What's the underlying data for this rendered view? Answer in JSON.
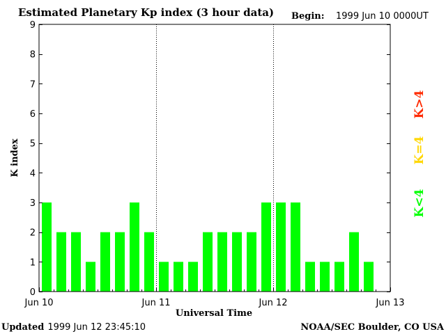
{
  "chart_data": {
    "type": "bar",
    "title": "Estimated Planetary Kp index (3 hour data)",
    "begin_label": "Begin:",
    "begin_value": "1999 Jun 10 0000UT",
    "xlabel": "Universal Time",
    "ylabel": "K index",
    "ylim": [
      0,
      9
    ],
    "yticks": [
      "0",
      "1",
      "2",
      "3",
      "4",
      "5",
      "6",
      "7",
      "8",
      "9"
    ],
    "xlim_hours": [
      0,
      72
    ],
    "xticks": [
      {
        "hour": 0,
        "label": "Jun 10"
      },
      {
        "hour": 24,
        "label": "Jun 11"
      },
      {
        "hour": 48,
        "label": "Jun 12"
      },
      {
        "hour": 72,
        "label": "Jun 13"
      }
    ],
    "day_dividers_hours": [
      24,
      48
    ],
    "bar_width_hours": 3,
    "values": [
      3,
      2,
      2,
      1,
      2,
      2,
      3,
      2,
      1,
      1,
      1,
      2,
      2,
      2,
      2,
      3,
      3,
      3,
      1,
      1,
      1,
      2,
      1
    ],
    "colors": {
      "low": "#00ff00",
      "medium": "#ffff00",
      "high": "#ff0000",
      "text": "#000000"
    },
    "legend": [
      {
        "label": "K<4",
        "color": "#00ff00"
      },
      {
        "label": "K=4",
        "color": "#ffd700"
      },
      {
        "label": "K>4",
        "color": "#ff2a00"
      }
    ]
  },
  "footer": {
    "updated_label": "Updated",
    "updated_value": "1999 Jun 12 23:45:10",
    "source": "NOAA/SEC Boulder, CO USA"
  }
}
